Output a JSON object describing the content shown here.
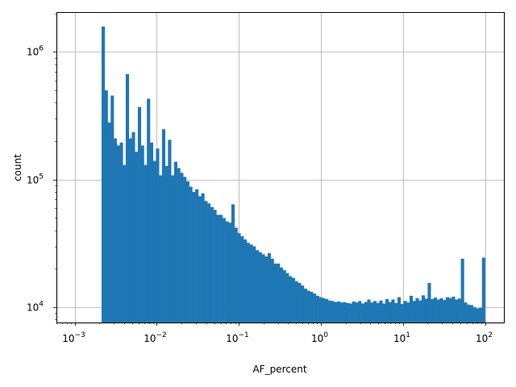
{
  "chart_data": {
    "type": "bar",
    "title": "",
    "xlabel": "AF_percent",
    "ylabel": "count",
    "x_scale": "log",
    "y_scale": "log",
    "xlim": [
      0.0006,
      170
    ],
    "ylim": [
      7600,
      2050000
    ],
    "grid": true,
    "bar_color": "#1f77b4",
    "x_major_ticks": [
      {
        "value": 0.001,
        "base": "10",
        "exp": "−3"
      },
      {
        "value": 0.01,
        "base": "10",
        "exp": "−2"
      },
      {
        "value": 0.1,
        "base": "10",
        "exp": "−1"
      },
      {
        "value": 1,
        "base": "10",
        "exp": "0"
      },
      {
        "value": 10,
        "base": "10",
        "exp": "1"
      },
      {
        "value": 100,
        "base": "10",
        "exp": "2"
      }
    ],
    "y_major_ticks": [
      {
        "value": 10000,
        "base": "10",
        "exp": "4"
      },
      {
        "value": 100000,
        "base": "10",
        "exp": "5"
      },
      {
        "value": 1000000,
        "base": "10",
        "exp": "6"
      }
    ],
    "bin_edge_range": [
      0.00213,
      100
    ],
    "values": [
      1580000,
      500000,
      280000,
      455000,
      210000,
      185000,
      195000,
      130000,
      670000,
      210000,
      235000,
      165000,
      370000,
      185000,
      130000,
      430000,
      195000,
      140000,
      175000,
      108000,
      248000,
      128000,
      205000,
      108000,
      138000,
      123000,
      113000,
      105000,
      97000,
      88000,
      80000,
      84000,
      74000,
      78000,
      68000,
      65000,
      61000,
      58000,
      53000,
      53000,
      50000,
      47000,
      46000,
      64000,
      42000,
      38000,
      36000,
      34000,
      32000,
      31000,
      30000,
      28000,
      27000,
      26000,
      25000,
      26500,
      24000,
      22000,
      22000,
      20500,
      19500,
      18500,
      17500,
      17000,
      16000,
      15500,
      14800,
      14000,
      13500,
      13200,
      12800,
      12300,
      12000,
      11800,
      11600,
      11300,
      11200,
      11000,
      11100,
      10900,
      10950,
      10800,
      10700,
      11100,
      10900,
      11200,
      10700,
      11000,
      11500,
      10900,
      11200,
      10800,
      11300,
      10700,
      11600,
      11000,
      11500,
      10800,
      12000,
      10600,
      11200,
      10900,
      12300,
      11200,
      11800,
      11300,
      12400,
      11700,
      15500,
      11600,
      11900,
      11500,
      11800,
      11400,
      12000,
      11800,
      12100,
      11500,
      11700,
      24000,
      10900,
      10500,
      10400,
      10000,
      9800,
      9900,
      24500
    ]
  }
}
